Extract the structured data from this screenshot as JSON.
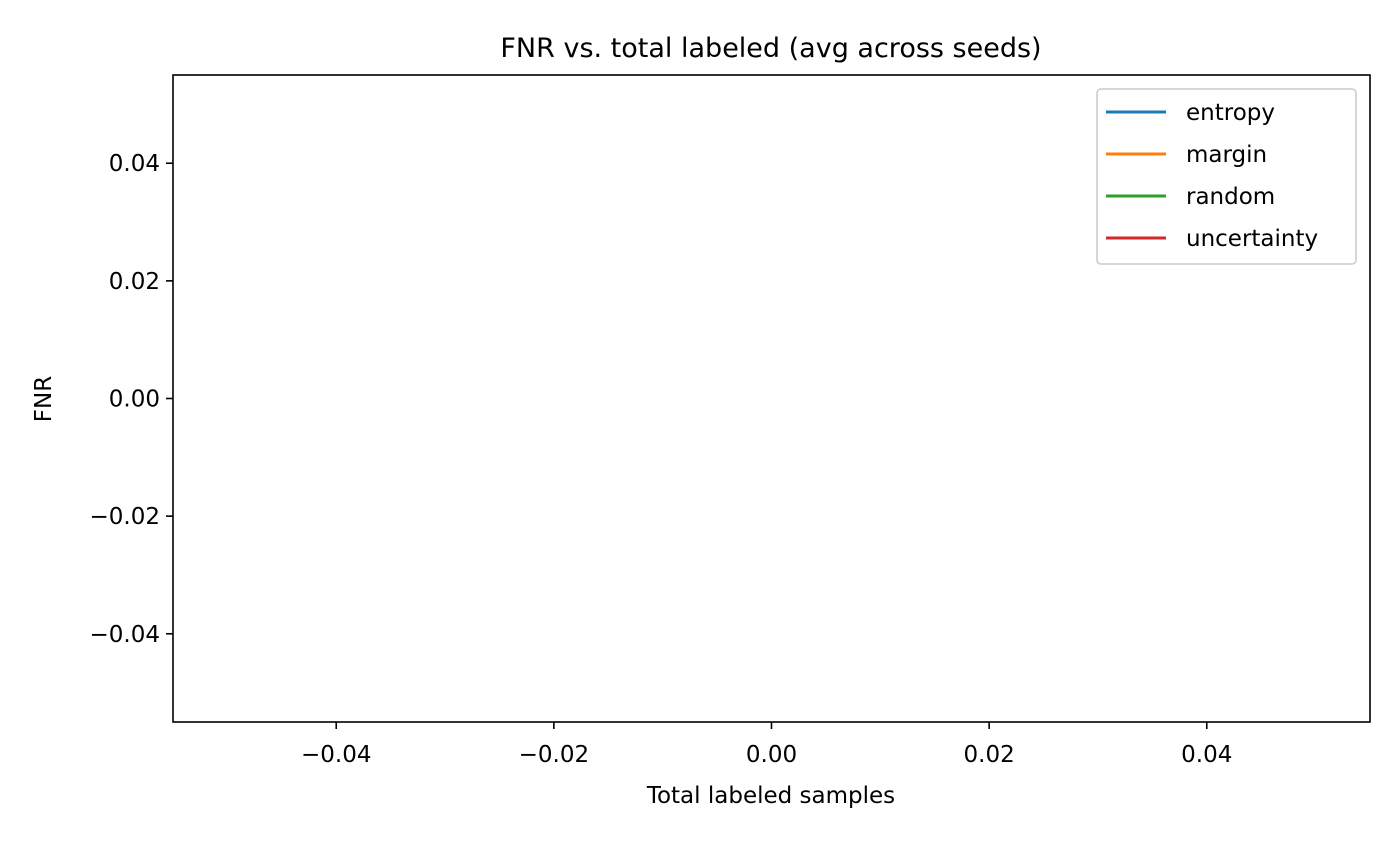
{
  "chart_data": {
    "type": "line",
    "title": "FNR vs. total labeled (avg across seeds)",
    "xlabel": "Total labeled samples",
    "ylabel": "FNR",
    "xlim": [
      -0.055,
      0.055
    ],
    "ylim": [
      -0.055,
      0.055
    ],
    "x_ticks": [
      -0.04,
      -0.02,
      0.0,
      0.02,
      0.04
    ],
    "x_tick_labels": [
      "−0.04",
      "−0.02",
      "0.00",
      "0.02",
      "0.04"
    ],
    "y_ticks": [
      -0.04,
      -0.02,
      0.0,
      0.02,
      0.04
    ],
    "y_tick_labels": [
      "−0.04",
      "−0.02",
      "0.00",
      "0.02",
      "0.04"
    ],
    "grid": false,
    "legend_position": "top-right",
    "series": [
      {
        "name": "entropy",
        "color": "#1f77b4",
        "x": [],
        "y": []
      },
      {
        "name": "margin",
        "color": "#ff7f0e",
        "x": [],
        "y": []
      },
      {
        "name": "random",
        "color": "#2ca02c",
        "x": [],
        "y": []
      },
      {
        "name": "uncertainty",
        "color": "#d62728",
        "x": [],
        "y": []
      }
    ]
  }
}
